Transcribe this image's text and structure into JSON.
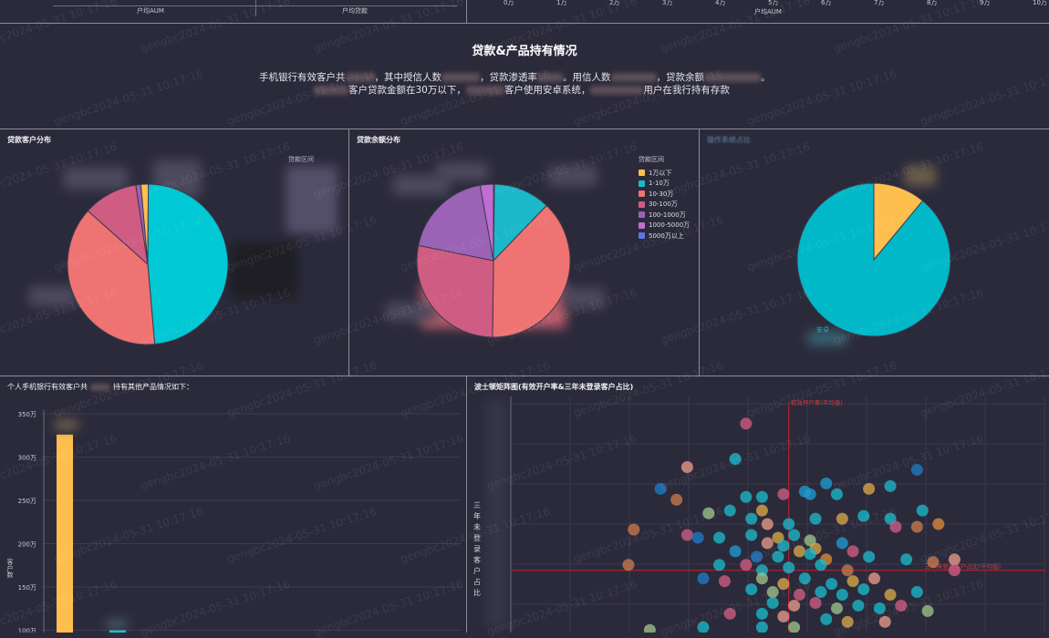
{
  "top_left": {
    "labels": [
      "户均AUM",
      "户均贷款"
    ]
  },
  "top_right": {
    "x_ticks": [
      "0万",
      "1万",
      "2万",
      "3万",
      "4万",
      "5万",
      "6万",
      "7万",
      "8万",
      "9万",
      "10万"
    ],
    "x_label": "户均AUM"
  },
  "summary": {
    "title": "贷款&产品持有情况",
    "line1": [
      "手机银行有效客户共",
      "，其中授信人数",
      "，贷款渗透率",
      "。用信人数",
      "，贷款余额",
      "。"
    ],
    "line2": [
      "客户贷款金额在30万以下，",
      "客户使用安卓系统，",
      "用户在我行持有存款"
    ]
  },
  "loan_customer": {
    "title": "贷款客户分布",
    "legend_title": "贷款区间",
    "chart_data": {
      "type": "pie",
      "title": "贷款客户分布",
      "slices": [
        {
          "color": "#ffbf4f",
          "value": 1.5
        },
        {
          "color": "#00c8d4",
          "value": 48.5
        },
        {
          "color": "#ef7372",
          "value": 38
        },
        {
          "color": "#cf5c82",
          "value": 11
        },
        {
          "color": "#9b63b6",
          "value": 1
        }
      ],
      "start_angle": -5
    }
  },
  "loan_balance": {
    "title": "贷款余额分布",
    "legend_title": "贷款区间",
    "legend": [
      {
        "label": "1万以下",
        "color": "#ffbf4f"
      },
      {
        "label": "1-10万",
        "color": "#1bb8c9"
      },
      {
        "label": "10-30万",
        "color": "#ef7372"
      },
      {
        "label": "30-100万",
        "color": "#cf5c82"
      },
      {
        "label": "100-1000万",
        "color": "#9b63b6"
      },
      {
        "label": "1000-5000万",
        "color": "#c26bd1"
      },
      {
        "label": "5000万以上",
        "color": "#5d77e0"
      }
    ],
    "chart_data": {
      "type": "pie",
      "title": "贷款余额分布",
      "slices": [
        {
          "label": "1万以下",
          "color": "#ffbf4f",
          "value": 0.2
        },
        {
          "label": "1-10万",
          "color": "#1bb8c9",
          "value": 12
        },
        {
          "label": "10-30万",
          "color": "#ef7372",
          "value": 38
        },
        {
          "label": "30-100万",
          "color": "#cf5c82",
          "value": 28
        },
        {
          "label": "100-1000万",
          "color": "#9b63b6",
          "value": 19
        },
        {
          "label": "1000-5000万",
          "color": "#c26bd1",
          "value": 2.8
        }
      ],
      "start_angle": 0
    }
  },
  "os_share": {
    "title": "操作系统占比",
    "label": "安卓",
    "chart_data": {
      "type": "pie",
      "slices": [
        {
          "color": "#ffbf4f",
          "value": 11
        },
        {
          "color": "#00b8c8",
          "value": 89
        }
      ],
      "start_angle": 0
    }
  },
  "products": {
    "title_prefix": "个人手机银行有效客户共",
    "title_suffix": "持有其他产品情况如下：",
    "ylabel": "客户数",
    "chart_data": {
      "type": "bar",
      "y_ticks": [
        "350万",
        "300万",
        "250万",
        "200万",
        "150万",
        "100万"
      ],
      "ylim": [
        0,
        350
      ],
      "series": [
        {
          "color": "#ffbf4f",
          "values": [
            326
          ]
        },
        {
          "color": "#1bd1e0",
          "values": [
            100
          ]
        }
      ]
    }
  },
  "bcg": {
    "title": "波士顿矩阵图(有效开户率&三年未登录客户占比)",
    "ylabel": "三年未登录客户占比",
    "vline_label": "有效开户率(平均值)",
    "hline_label": "三年未登录客户占比(平均值)",
    "chart_data": {
      "type": "scatter",
      "xlim": [
        0,
        100
      ],
      "ylim": [
        0,
        100
      ],
      "v_avg": 52,
      "h_avg": 36,
      "points": [
        [
          44,
          90,
          "#cf5c82"
        ],
        [
          42,
          77,
          "#1bb8c9"
        ],
        [
          33,
          74,
          "#e89a8b"
        ],
        [
          59,
          68,
          "#1f9bd1"
        ],
        [
          55,
          65,
          "#1f9bd1"
        ],
        [
          28,
          66,
          "#1f7bc4"
        ],
        [
          31,
          62,
          "#c77a4d"
        ],
        [
          44,
          63,
          "#1bb8c9"
        ],
        [
          47,
          63,
          "#1bb8c9"
        ],
        [
          51,
          64,
          "#cf5c82"
        ],
        [
          56,
          64,
          "#1f9bd1"
        ],
        [
          61,
          64,
          "#1bb8c9"
        ],
        [
          67,
          66,
          "#d9a84a"
        ],
        [
          71,
          67,
          "#1bb8c9"
        ],
        [
          76,
          73,
          "#1f7bc4"
        ],
        [
          47,
          58,
          "#d9a84a"
        ],
        [
          41,
          58,
          "#1bb8c9"
        ],
        [
          37,
          57,
          "#9cc18a"
        ],
        [
          45,
          55,
          "#1bb8c9"
        ],
        [
          48,
          53,
          "#e89a8b"
        ],
        [
          52,
          53,
          "#1bb8c9"
        ],
        [
          57,
          55,
          "#1bb8c9"
        ],
        [
          62,
          55,
          "#d9a84a"
        ],
        [
          66,
          56,
          "#1bb8c9"
        ],
        [
          71,
          55,
          "#1bb8c9"
        ],
        [
          77,
          58,
          "#1bb8c9"
        ],
        [
          72,
          52,
          "#cf5c82"
        ],
        [
          76,
          52,
          "#c77a4d"
        ],
        [
          80,
          53,
          "#d98a3a"
        ],
        [
          23,
          51,
          "#c77a4d"
        ],
        [
          33,
          49,
          "#cf5c82"
        ],
        [
          35,
          48,
          "#1f7bc4"
        ],
        [
          39,
          48,
          "#1bb8c9"
        ],
        [
          45,
          49,
          "#1bb8c9"
        ],
        [
          50,
          48,
          "#d9a84a"
        ],
        [
          53,
          49,
          "#1bb8c9"
        ],
        [
          48,
          46,
          "#e89a8b"
        ],
        [
          56,
          47,
          "#9cc18a"
        ],
        [
          51,
          45,
          "#1bb8c9"
        ],
        [
          54,
          43,
          "#d9a84a"
        ],
        [
          57,
          44,
          "#d9a84a"
        ],
        [
          62,
          46,
          "#1f9bd1"
        ],
        [
          42,
          43,
          "#1f9bd1"
        ],
        [
          46,
          41,
          "#1f7bc4"
        ],
        [
          50,
          41,
          "#1bb8c9"
        ],
        [
          56,
          42,
          "#1bb8c9"
        ],
        [
          59,
          40,
          "#d98a3a"
        ],
        [
          64,
          43,
          "#cf5c82"
        ],
        [
          67,
          41,
          "#1bb8c9"
        ],
        [
          74,
          40,
          "#1bb8c9"
        ],
        [
          79,
          39,
          "#c77a4d"
        ],
        [
          83,
          40,
          "#e89a8b"
        ],
        [
          83,
          36,
          "#cf5c82"
        ],
        [
          22,
          38,
          "#c77a4d"
        ],
        [
          39,
          38,
          "#1bb8c9"
        ],
        [
          44,
          38,
          "#cf5c82"
        ],
        [
          47,
          36,
          "#1bb8c9"
        ],
        [
          52,
          37,
          "#1bb8c9"
        ],
        [
          58,
          38,
          "#1bb8c9"
        ],
        [
          63,
          36,
          "#c77a4d"
        ],
        [
          36,
          33,
          "#1f7bc4"
        ],
        [
          40,
          32,
          "#cf5c82"
        ],
        [
          47,
          33,
          "#9cc18a"
        ],
        [
          51,
          31,
          "#d9a84a"
        ],
        [
          55,
          33,
          "#1bb8c9"
        ],
        [
          60,
          31,
          "#1bb8c9"
        ],
        [
          64,
          32,
          "#d9a84a"
        ],
        [
          68,
          33,
          "#e89a8b"
        ],
        [
          45,
          29,
          "#1bb8c9"
        ],
        [
          49,
          28,
          "#9cc18a"
        ],
        [
          54,
          27,
          "#cf5c82"
        ],
        [
          58,
          28,
          "#1bb8c9"
        ],
        [
          62,
          27,
          "#1bb8c9"
        ],
        [
          66,
          29,
          "#1bb8c9"
        ],
        [
          71,
          27,
          "#d9a84a"
        ],
        [
          76,
          28,
          "#1bb8c9"
        ],
        [
          49,
          24,
          "#1bb8c9"
        ],
        [
          53,
          23,
          "#e89a8b"
        ],
        [
          57,
          24,
          "#cf5c82"
        ],
        [
          61,
          22,
          "#9cc18a"
        ],
        [
          65,
          23,
          "#1bb8c9"
        ],
        [
          69,
          22,
          "#1bb8c9"
        ],
        [
          73,
          23,
          "#cf5c82"
        ],
        [
          78,
          21,
          "#9cc18a"
        ],
        [
          41,
          20,
          "#cf5c82"
        ],
        [
          47,
          20,
          "#1bb8c9"
        ],
        [
          51,
          19,
          "#e89a8b"
        ],
        [
          59,
          18,
          "#1bb8c9"
        ],
        [
          63,
          17,
          "#d9a84a"
        ],
        [
          70,
          17,
          "#e89a8b"
        ],
        [
          47,
          15,
          "#1bb8c9"
        ],
        [
          53,
          15,
          "#9cc18a"
        ],
        [
          36,
          15,
          "#1bb8c9"
        ],
        [
          26,
          14,
          "#9cc18a"
        ]
      ]
    }
  },
  "watermark": "gengbc2024-05-31 10:17:16"
}
